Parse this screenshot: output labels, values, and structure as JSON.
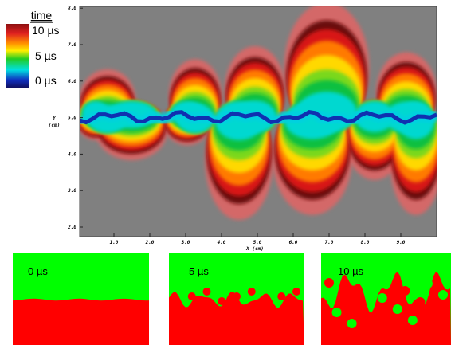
{
  "colorbar": {
    "title": "time",
    "labels": [
      "10 µs",
      "5 µs",
      "0 µs"
    ]
  },
  "plot": {
    "x_label": "X (cm)",
    "y_label": [
      "Y",
      "(cm)"
    ],
    "x_ticks": [
      "1.0",
      "2.0",
      "3.0",
      "4.0",
      "5.0",
      "6.0",
      "7.0",
      "8.0",
      "9.0"
    ],
    "y_ticks": [
      "2.0",
      "3.0",
      "4.0",
      "5.0",
      "6.0",
      "7.0",
      "8.0"
    ]
  },
  "panels": [
    {
      "label": "0 µs"
    },
    {
      "label": "5 µs"
    },
    {
      "label": "10 µs"
    }
  ]
}
